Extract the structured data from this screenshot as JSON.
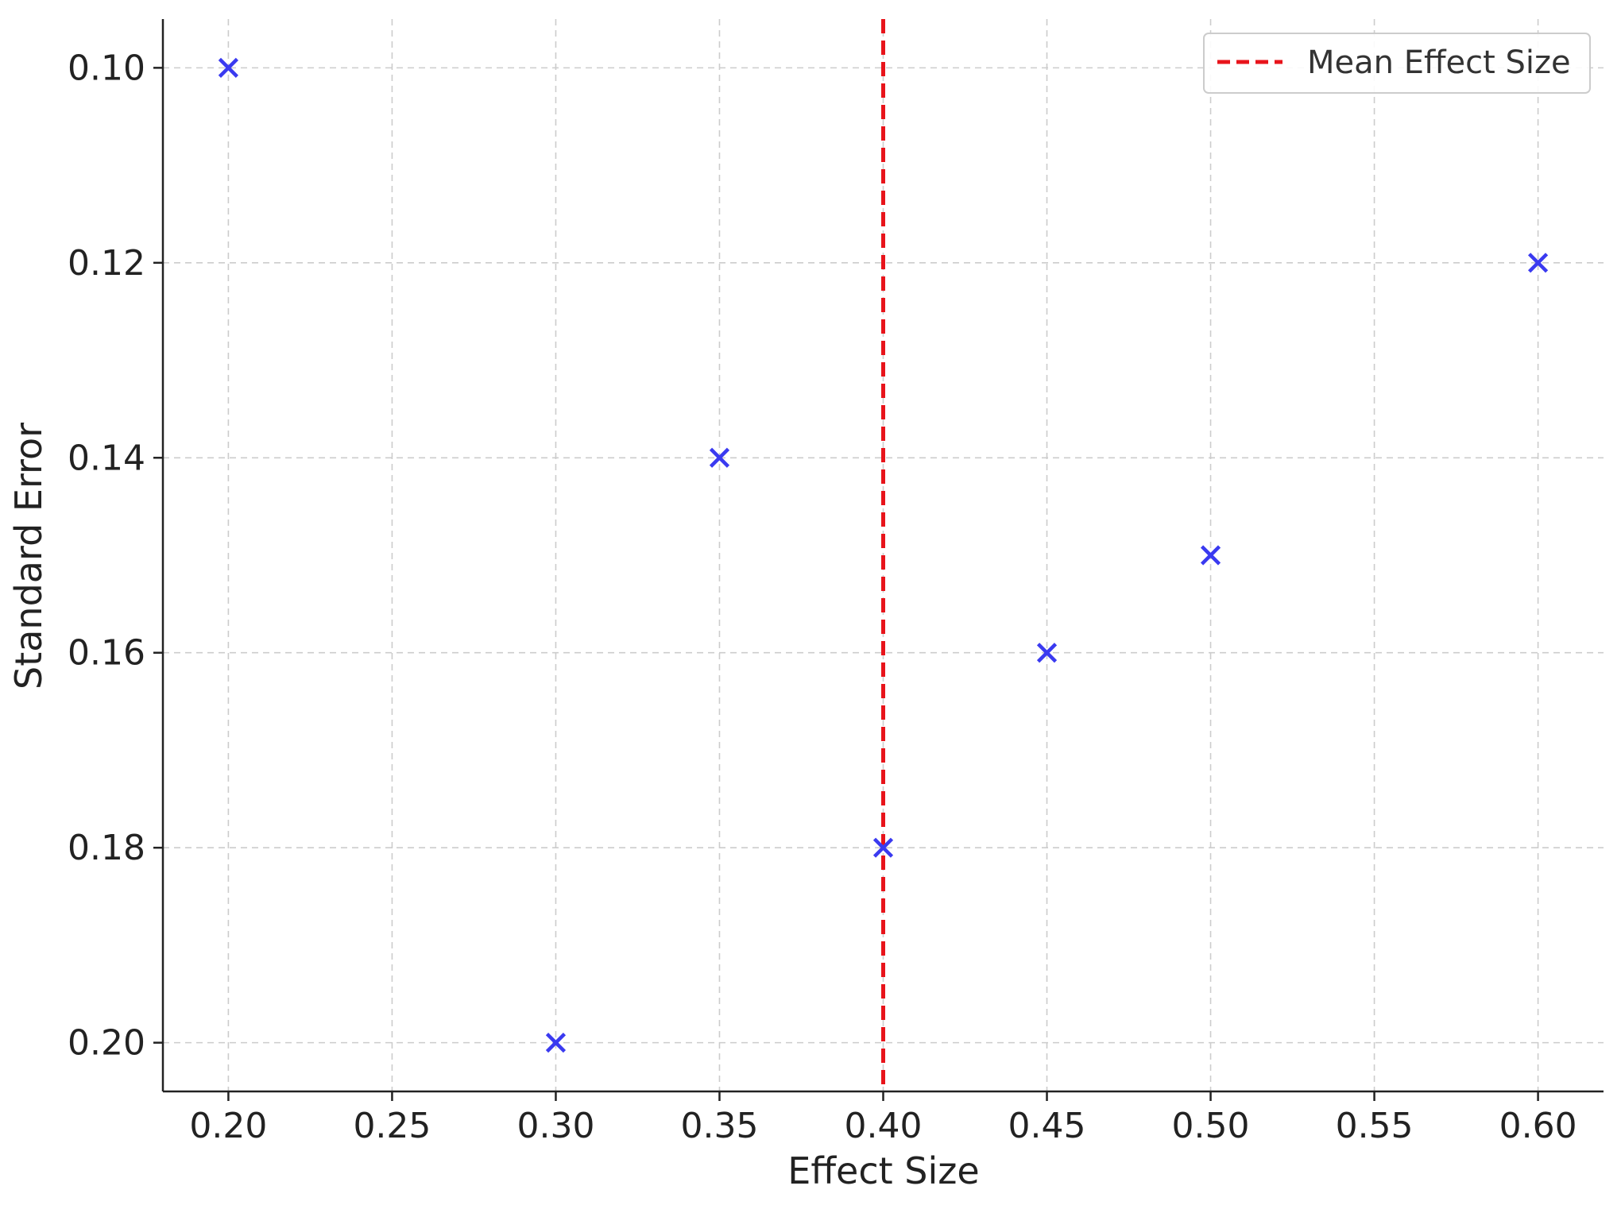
{
  "chart_data": {
    "type": "scatter",
    "title": "",
    "xlabel": "Effect Size",
    "ylabel": "Standard Error",
    "xlim": [
      0.18,
      0.62
    ],
    "ylim": [
      0.205,
      0.095
    ],
    "y_inverted": true,
    "grid": true,
    "xticks": [
      "0.20",
      "0.25",
      "0.30",
      "0.35",
      "0.40",
      "0.45",
      "0.50",
      "0.55",
      "0.60"
    ],
    "yticks": [
      "0.10",
      "0.12",
      "0.14",
      "0.16",
      "0.18",
      "0.20"
    ],
    "series": [
      {
        "marker": "x",
        "color": "#3a3af0",
        "x": [
          0.2,
          0.3,
          0.35,
          0.4,
          0.45,
          0.5,
          0.6
        ],
        "y": [
          0.1,
          0.2,
          0.14,
          0.18,
          0.16,
          0.15,
          0.12
        ]
      }
    ],
    "reference_line": {
      "orientation": "vertical",
      "x": 0.4,
      "style": "dashed",
      "color": "#e8141b",
      "label": "Mean Effect Size"
    },
    "legend": {
      "position": "top-right",
      "entries": [
        "Mean Effect Size"
      ]
    }
  }
}
